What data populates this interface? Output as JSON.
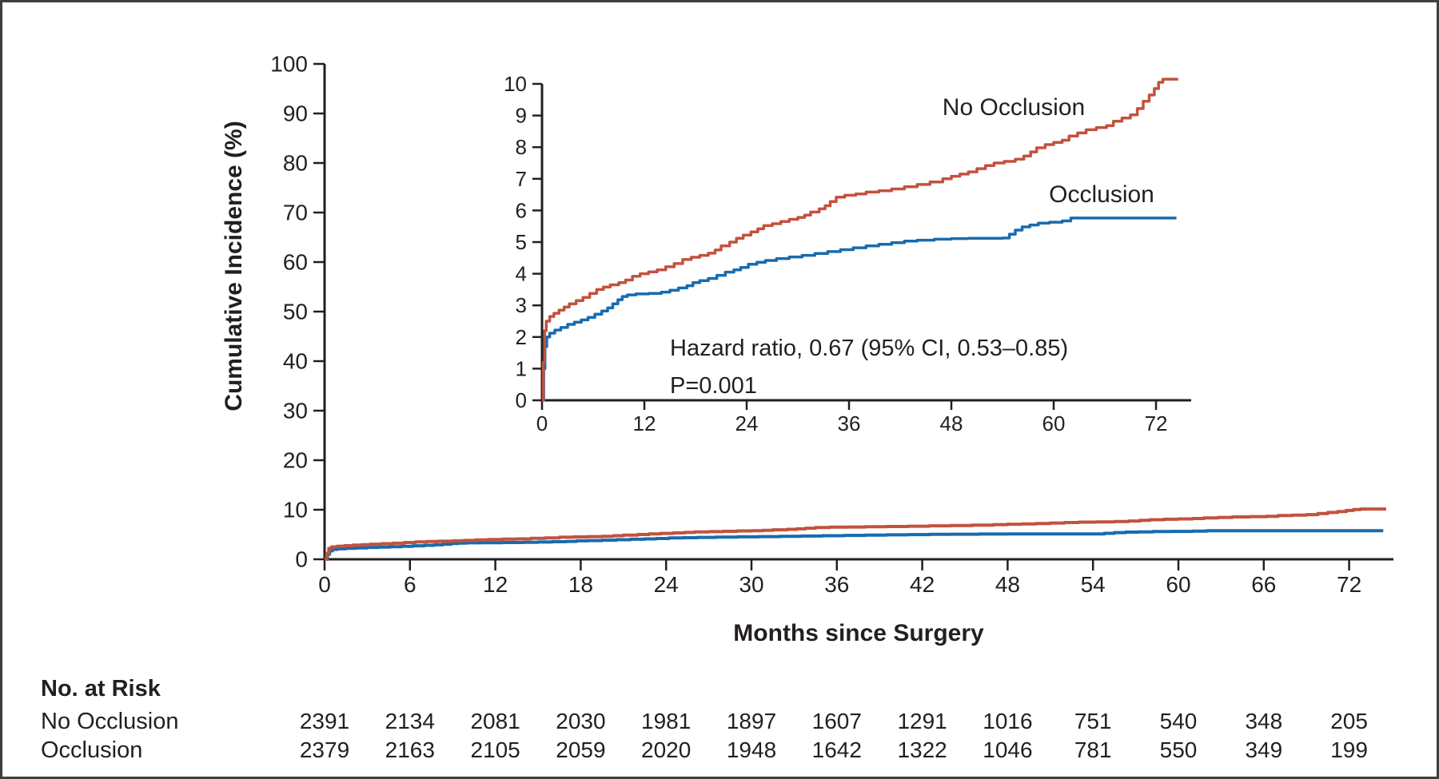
{
  "figure": {
    "y_axis_label": "Cumulative Incidence (%)",
    "x_axis_label": "Months since Surgery",
    "colors": {
      "no_occlusion": "#c2523e",
      "occlusion": "#186bad",
      "axis": "#231f20",
      "frame_border": "#3e3e3e"
    }
  },
  "chart_data": {
    "type": "line",
    "subtype": "step-cumulative-incidence",
    "grid": false,
    "series": [
      {
        "name": "No Occlusion",
        "color": "#c2523e",
        "points": [
          [
            0,
            0
          ],
          [
            0.15,
            1.2
          ],
          [
            0.3,
            2.2
          ],
          [
            0.5,
            2.5
          ],
          [
            0.9,
            2.65
          ],
          [
            1.4,
            2.75
          ],
          [
            2,
            2.85
          ],
          [
            2.6,
            2.95
          ],
          [
            3.2,
            3.05
          ],
          [
            4,
            3.15
          ],
          [
            4.8,
            3.25
          ],
          [
            5.6,
            3.38
          ],
          [
            6.4,
            3.5
          ],
          [
            7.2,
            3.58
          ],
          [
            8,
            3.65
          ],
          [
            9,
            3.72
          ],
          [
            9.8,
            3.8
          ],
          [
            10.6,
            3.92
          ],
          [
            11.5,
            4
          ],
          [
            12.5,
            4.06
          ],
          [
            13.5,
            4.12
          ],
          [
            14.5,
            4.22
          ],
          [
            15.5,
            4.32
          ],
          [
            16.5,
            4.45
          ],
          [
            17.5,
            4.52
          ],
          [
            18.5,
            4.58
          ],
          [
            19.5,
            4.65
          ],
          [
            20.3,
            4.75
          ],
          [
            21,
            4.88
          ],
          [
            22,
            5
          ],
          [
            22.8,
            5.12
          ],
          [
            23.6,
            5.22
          ],
          [
            24.5,
            5.32
          ],
          [
            25.3,
            5.42
          ],
          [
            26,
            5.52
          ],
          [
            27,
            5.58
          ],
          [
            28,
            5.65
          ],
          [
            29,
            5.72
          ],
          [
            30,
            5.78
          ],
          [
            30.8,
            5.85
          ],
          [
            31.5,
            5.95
          ],
          [
            32.5,
            6.05
          ],
          [
            33.2,
            6.15
          ],
          [
            33.8,
            6.28
          ],
          [
            34.5,
            6.42
          ],
          [
            35.5,
            6.48
          ],
          [
            36.8,
            6.52
          ],
          [
            38,
            6.58
          ],
          [
            39.5,
            6.62
          ],
          [
            41,
            6.68
          ],
          [
            42.5,
            6.75
          ],
          [
            44,
            6.82
          ],
          [
            45.5,
            6.9
          ],
          [
            47,
            7
          ],
          [
            48,
            7.08
          ],
          [
            49,
            7.15
          ],
          [
            50,
            7.22
          ],
          [
            51,
            7.32
          ],
          [
            52,
            7.42
          ],
          [
            53,
            7.5
          ],
          [
            54.2,
            7.55
          ],
          [
            55.5,
            7.62
          ],
          [
            56.5,
            7.72
          ],
          [
            57.3,
            7.85
          ],
          [
            58,
            7.98
          ],
          [
            59,
            8.08
          ],
          [
            60,
            8.15
          ],
          [
            61,
            8.22
          ],
          [
            61.8,
            8.35
          ],
          [
            62.8,
            8.45
          ],
          [
            63.8,
            8.55
          ],
          [
            65,
            8.62
          ],
          [
            66.2,
            8.68
          ],
          [
            67,
            8.82
          ],
          [
            68,
            8.92
          ],
          [
            69,
            9.02
          ],
          [
            69.8,
            9.22
          ],
          [
            70.5,
            9.45
          ],
          [
            71.2,
            9.65
          ],
          [
            71.8,
            9.85
          ],
          [
            72.3,
            10.05
          ],
          [
            72.8,
            10.15
          ],
          [
            74.6,
            10.15
          ]
        ]
      },
      {
        "name": "Occlusion",
        "color": "#186bad",
        "points": [
          [
            0,
            0
          ],
          [
            0.2,
            1
          ],
          [
            0.35,
            1.7
          ],
          [
            0.55,
            2
          ],
          [
            0.9,
            2.12
          ],
          [
            1.5,
            2.22
          ],
          [
            2.2,
            2.3
          ],
          [
            3,
            2.4
          ],
          [
            3.8,
            2.47
          ],
          [
            4.6,
            2.54
          ],
          [
            5.4,
            2.62
          ],
          [
            6.2,
            2.72
          ],
          [
            7,
            2.82
          ],
          [
            7.7,
            2.92
          ],
          [
            8.3,
            3.05
          ],
          [
            8.9,
            3.18
          ],
          [
            9.4,
            3.28
          ],
          [
            10,
            3.33
          ],
          [
            11,
            3.36
          ],
          [
            12.5,
            3.38
          ],
          [
            14,
            3.42
          ],
          [
            15,
            3.48
          ],
          [
            16,
            3.55
          ],
          [
            17,
            3.62
          ],
          [
            17.7,
            3.72
          ],
          [
            18.5,
            3.78
          ],
          [
            19.5,
            3.85
          ],
          [
            20.5,
            3.95
          ],
          [
            21.5,
            4.05
          ],
          [
            22.5,
            4.12
          ],
          [
            23.3,
            4.2
          ],
          [
            24.2,
            4.3
          ],
          [
            25.2,
            4.36
          ],
          [
            26.2,
            4.42
          ],
          [
            27.5,
            4.48
          ],
          [
            29,
            4.53
          ],
          [
            30.5,
            4.58
          ],
          [
            32,
            4.64
          ],
          [
            33.5,
            4.7
          ],
          [
            35,
            4.76
          ],
          [
            36.5,
            4.82
          ],
          [
            38,
            4.88
          ],
          [
            39.5,
            4.93
          ],
          [
            41,
            4.98
          ],
          [
            42.5,
            5.03
          ],
          [
            44,
            5.06
          ],
          [
            46,
            5.09
          ],
          [
            48,
            5.11
          ],
          [
            50,
            5.12
          ],
          [
            54,
            5.13
          ],
          [
            54.8,
            5.25
          ],
          [
            55.5,
            5.38
          ],
          [
            56.3,
            5.48
          ],
          [
            57.2,
            5.54
          ],
          [
            58.2,
            5.6
          ],
          [
            59.5,
            5.63
          ],
          [
            61,
            5.67
          ],
          [
            62,
            5.76
          ],
          [
            74.4,
            5.76
          ]
        ]
      }
    ],
    "views": [
      {
        "id": "main",
        "xlabel": "Months since Surgery",
        "ylabel": "Cumulative Incidence (%)",
        "xlim": [
          0,
          75
        ],
        "ylim": [
          0,
          100
        ],
        "xticks": [
          0,
          6,
          12,
          18,
          24,
          30,
          36,
          42,
          48,
          54,
          60,
          66,
          72
        ],
        "yticks": [
          0,
          10,
          20,
          30,
          40,
          50,
          60,
          70,
          80,
          90,
          100
        ]
      },
      {
        "id": "inset",
        "xlabel": "",
        "ylabel": "",
        "xlim": [
          0,
          76
        ],
        "ylim": [
          0,
          10
        ],
        "xticks": [
          0,
          12,
          24,
          36,
          48,
          60,
          72
        ],
        "yticks": [
          0,
          1,
          2,
          3,
          4,
          5,
          6,
          7,
          8,
          9,
          10
        ],
        "annotation_hr": "Hazard ratio, 0.67 (95% CI, 0.53–0.85)",
        "annotation_p": "P=0.001"
      }
    ]
  },
  "risk_table": {
    "title": "No. at Risk",
    "months": [
      0,
      6,
      12,
      18,
      24,
      30,
      36,
      42,
      48,
      54,
      60,
      66,
      72
    ],
    "rows": [
      {
        "label": "No Occlusion",
        "values": [
          2391,
          2134,
          2081,
          2030,
          1981,
          1897,
          1607,
          1291,
          1016,
          751,
          540,
          348,
          205
        ]
      },
      {
        "label": "Occlusion",
        "values": [
          2379,
          2163,
          2105,
          2059,
          2020,
          1948,
          1642,
          1322,
          1046,
          781,
          550,
          349,
          199
        ]
      }
    ]
  }
}
